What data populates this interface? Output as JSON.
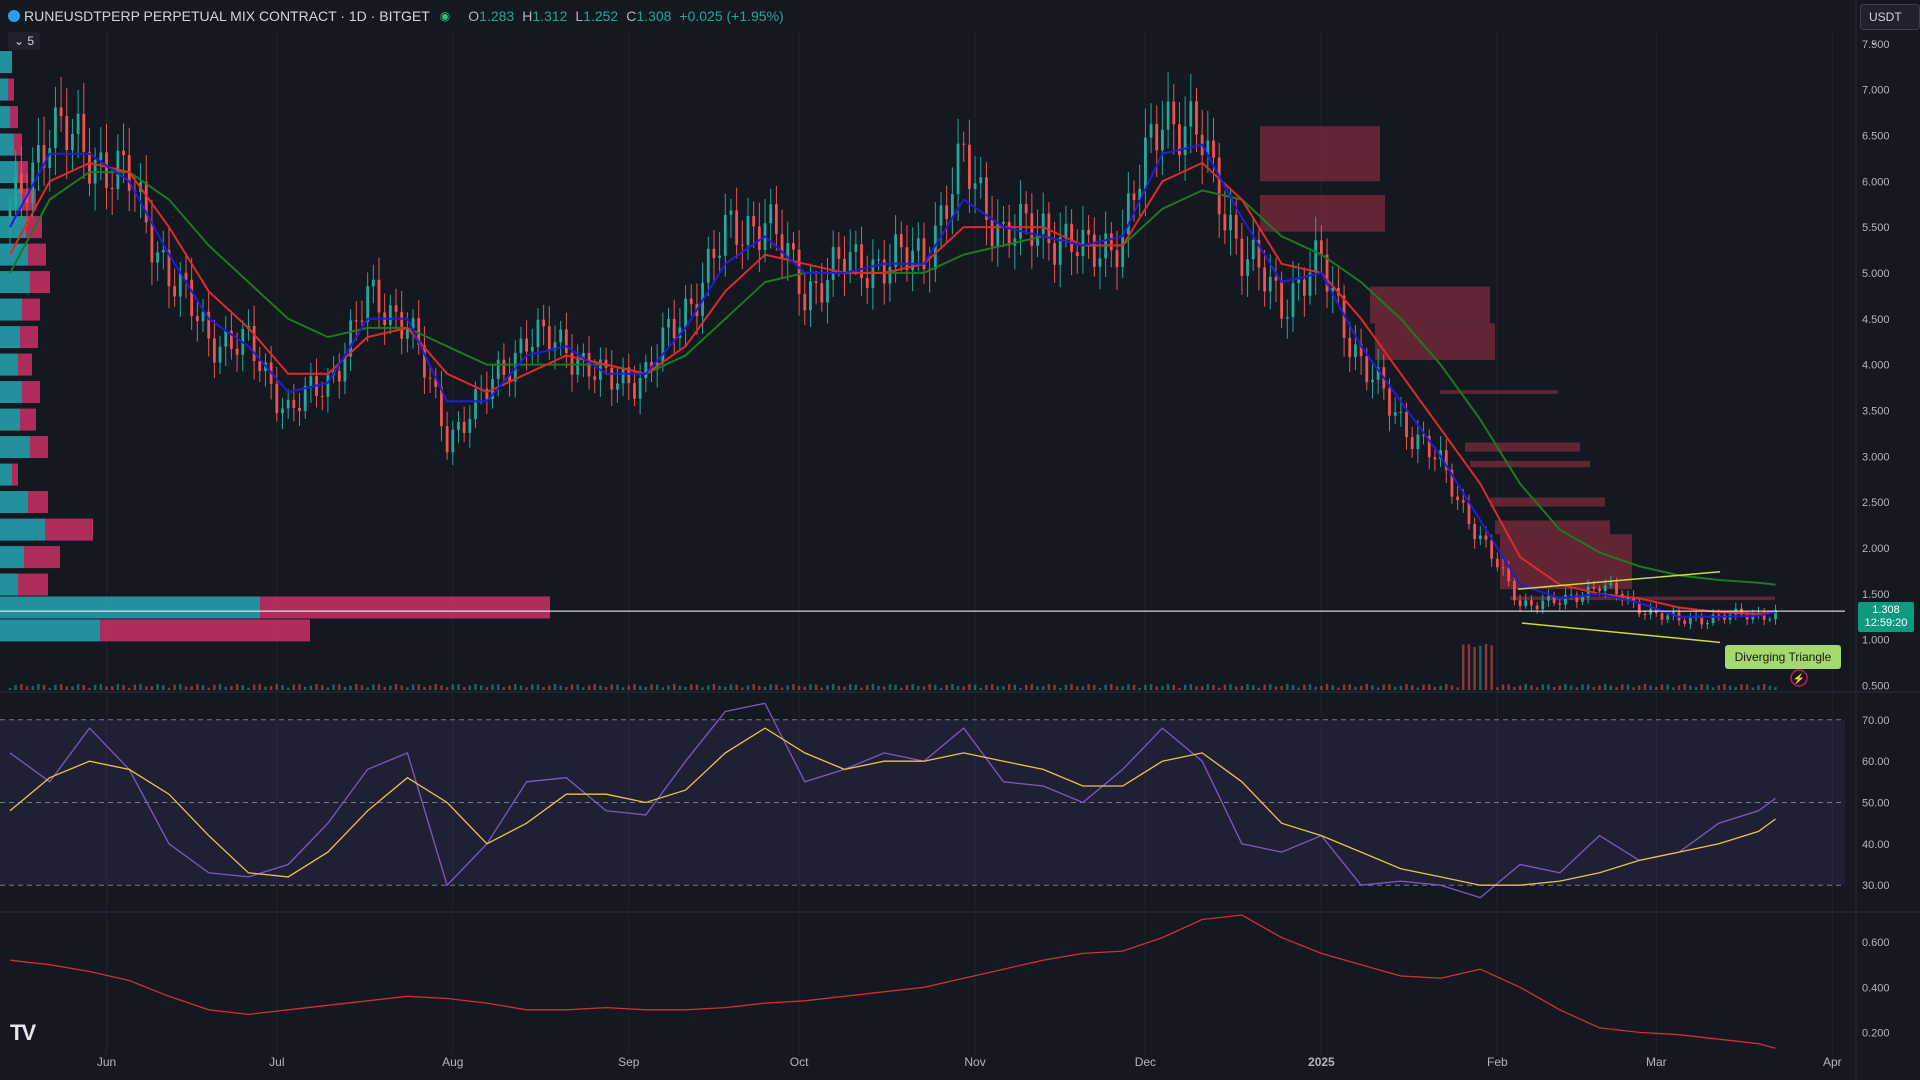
{
  "header": {
    "symbol": "RUNEUSDTPERP PERPETUAL MIX CONTRACT · 1D · BITGET",
    "open_label": "O",
    "open": "1.283",
    "high_label": "H",
    "high": "1.312",
    "low_label": "L",
    "low": "1.252",
    "close_label": "C",
    "close": "1.308",
    "change": "+0.025 (+1.95%)"
  },
  "legend_toggle": "5",
  "currency": "USDT",
  "price_tag": {
    "price": "1.308",
    "countdown": "12:59:20"
  },
  "pattern_label": "Diverging Triangle",
  "logo": "TV",
  "chart_data": [
    {
      "type": "line",
      "name": "price",
      "x": [
        "2024-05-15",
        "2024-05-22",
        "2024-05-29",
        "2024-06-05",
        "2024-06-12",
        "2024-06-19",
        "2024-06-26",
        "2024-07-03",
        "2024-07-10",
        "2024-07-17",
        "2024-07-24",
        "2024-07-31",
        "2024-08-07",
        "2024-08-14",
        "2024-08-21",
        "2024-08-28",
        "2024-09-04",
        "2024-09-11",
        "2024-09-18",
        "2024-09-25",
        "2024-10-02",
        "2024-10-09",
        "2024-10-16",
        "2024-10-23",
        "2024-10-30",
        "2024-11-06",
        "2024-11-13",
        "2024-11-20",
        "2024-11-27",
        "2024-12-04",
        "2024-12-11",
        "2024-12-18",
        "2024-12-25",
        "2025-01-01",
        "2025-01-08",
        "2025-01-15",
        "2025-01-22",
        "2025-01-29",
        "2025-02-05",
        "2025-02-12",
        "2025-02-19",
        "2025-02-26",
        "2025-03-05",
        "2025-03-12",
        "2025-03-19",
        "2025-03-22"
      ],
      "series": [
        {
          "name": "close",
          "values": [
            5.6,
            6.6,
            6.3,
            6.0,
            5.0,
            4.3,
            4.2,
            3.5,
            3.8,
            4.7,
            4.5,
            3.2,
            3.7,
            4.3,
            4.2,
            3.8,
            3.9,
            4.6,
            5.4,
            5.6,
            4.8,
            5.1,
            5.1,
            5.2,
            6.2,
            5.4,
            5.5,
            5.2,
            5.4,
            6.8,
            6.4,
            5.2,
            4.7,
            5.1,
            4.0,
            3.4,
            2.9,
            2.1,
            1.4,
            1.4,
            1.6,
            1.35,
            1.2,
            1.25,
            1.27,
            1.31
          ]
        },
        {
          "name": "ema_short",
          "values": [
            5.5,
            6.3,
            6.3,
            6.0,
            5.2,
            4.5,
            4.2,
            3.7,
            3.8,
            4.5,
            4.5,
            3.6,
            3.6,
            4.1,
            4.2,
            3.9,
            3.9,
            4.4,
            5.1,
            5.4,
            5.0,
            5.0,
            5.1,
            5.1,
            5.8,
            5.5,
            5.4,
            5.3,
            5.4,
            6.3,
            6.4,
            5.6,
            4.9,
            5.0,
            4.2,
            3.6,
            3.0,
            2.3,
            1.6,
            1.45,
            1.5,
            1.4,
            1.25,
            1.25,
            1.26,
            1.3
          ]
        },
        {
          "name": "ema_mid",
          "values": [
            5.2,
            6.0,
            6.2,
            6.1,
            5.5,
            4.8,
            4.4,
            3.9,
            3.9,
            4.3,
            4.4,
            3.9,
            3.7,
            3.9,
            4.1,
            4.0,
            3.9,
            4.2,
            4.8,
            5.2,
            5.1,
            5.0,
            5.0,
            5.1,
            5.5,
            5.5,
            5.5,
            5.3,
            5.3,
            6.0,
            6.2,
            5.8,
            5.1,
            5.0,
            4.5,
            3.9,
            3.3,
            2.7,
            1.9,
            1.6,
            1.5,
            1.45,
            1.35,
            1.3,
            1.28,
            1.3
          ]
        },
        {
          "name": "ema_long",
          "values": [
            5.0,
            5.8,
            6.1,
            6.1,
            5.8,
            5.3,
            4.9,
            4.5,
            4.3,
            4.4,
            4.4,
            4.2,
            4.0,
            4.0,
            4.0,
            4.0,
            3.9,
            4.1,
            4.5,
            4.9,
            5.0,
            5.0,
            5.0,
            5.0,
            5.2,
            5.3,
            5.4,
            5.3,
            5.3,
            5.7,
            5.9,
            5.8,
            5.4,
            5.2,
            4.9,
            4.5,
            4.0,
            3.4,
            2.7,
            2.2,
            1.95,
            1.8,
            1.7,
            1.65,
            1.62,
            1.6
          ]
        }
      ],
      "ytick_labels": [
        "7.500",
        "7.000",
        "6.500",
        "6.000",
        "5.500",
        "5.000",
        "4.500",
        "4.000",
        "3.500",
        "3.000",
        "2.500",
        "2.000",
        "1.500",
        "1.000",
        "0.500"
      ],
      "ylim": [
        0.45,
        7.65
      ],
      "xtick_labels": [
        "Jun",
        "Jul",
        "Aug",
        "Sep",
        "Oct",
        "Nov",
        "Dec",
        "2025",
        "Feb",
        "Mar",
        "Apr"
      ],
      "xtick_dates": [
        "2024-06-01",
        "2024-07-01",
        "2024-08-01",
        "2024-09-01",
        "2024-10-01",
        "2024-11-01",
        "2024-12-01",
        "2025-01-01",
        "2025-02-01",
        "2025-03-01",
        "2025-04-01"
      ],
      "colors": {
        "up": "#26a69a",
        "down": "#ef5350",
        "ema_short": "#1e1ed8",
        "ema_mid": "#e02a2a",
        "ema_long": "#1e7a1e"
      }
    },
    {
      "type": "line",
      "name": "rsi",
      "ytick_labels": [
        "70.00",
        "60.00",
        "50.00",
        "40.00",
        "30.00"
      ],
      "ylim": [
        24,
        76
      ],
      "series": [
        {
          "name": "rsi",
          "values": [
            62,
            55,
            68,
            58,
            40,
            33,
            32,
            35,
            45,
            58,
            62,
            30,
            40,
            55,
            56,
            48,
            47,
            60,
            72,
            74,
            55,
            58,
            62,
            60,
            68,
            55,
            54,
            50,
            58,
            68,
            60,
            40,
            38,
            42,
            30,
            31,
            30,
            27,
            35,
            33,
            42,
            36,
            38,
            45,
            48,
            51
          ]
        },
        {
          "name": "rsi_ma",
          "values": [
            48,
            56,
            60,
            58,
            52,
            42,
            33,
            32,
            38,
            48,
            56,
            50,
            40,
            45,
            52,
            52,
            50,
            53,
            62,
            68,
            62,
            58,
            60,
            60,
            62,
            60,
            58,
            54,
            54,
            60,
            62,
            55,
            45,
            42,
            38,
            34,
            32,
            30,
            30,
            31,
            33,
            36,
            38,
            40,
            43,
            46
          ]
        }
      ],
      "colors": {
        "rsi": "#7e57c2",
        "rsi_ma": "#e8c547"
      }
    },
    {
      "type": "line",
      "name": "oscillator",
      "ytick_labels": [
        "0.600",
        "0.400",
        "0.200"
      ],
      "ylim": [
        0.1,
        0.72
      ],
      "series": [
        {
          "name": "value",
          "values": [
            0.52,
            0.5,
            0.47,
            0.43,
            0.36,
            0.3,
            0.28,
            0.3,
            0.32,
            0.34,
            0.36,
            0.35,
            0.33,
            0.3,
            0.3,
            0.31,
            0.3,
            0.3,
            0.31,
            0.33,
            0.34,
            0.36,
            0.38,
            0.4,
            0.44,
            0.48,
            0.52,
            0.55,
            0.56,
            0.62,
            0.7,
            0.72,
            0.62,
            0.55,
            0.5,
            0.45,
            0.44,
            0.48,
            0.4,
            0.3,
            0.22,
            0.2,
            0.19,
            0.17,
            0.15,
            0.13
          ]
        }
      ],
      "colors": {
        "value": "#d32f2f"
      }
    }
  ]
}
